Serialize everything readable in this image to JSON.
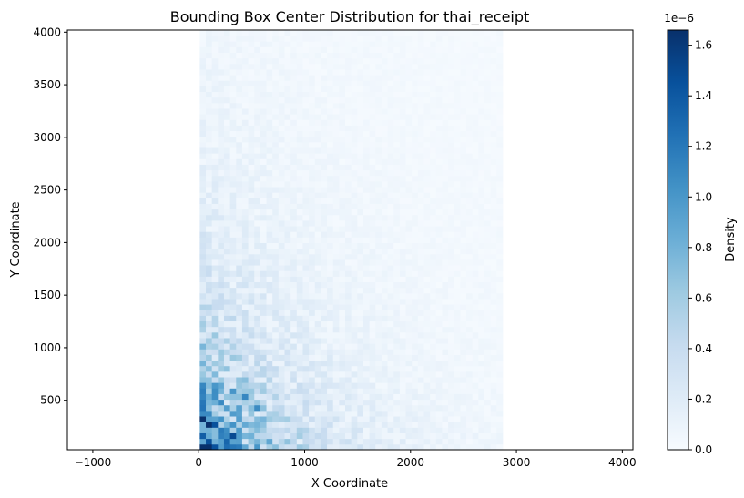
{
  "chart_data": {
    "type": "heatmap",
    "title": "Bounding Box Center Distribution for thai_receipt",
    "xlabel": "X Coordinate",
    "ylabel": "Y Coordinate",
    "xlim": [
      -1240,
      4100
    ],
    "ylim": [
      30,
      4020
    ],
    "xticks": [
      -1000,
      0,
      1000,
      2000,
      3000,
      4000
    ],
    "xtick_labels": [
      "−1000",
      "0",
      "1000",
      "2000",
      "3000",
      "4000"
    ],
    "yticks": [
      500,
      1000,
      1500,
      2000,
      2500,
      3000,
      3500,
      4000
    ],
    "ytick_labels": [
      "500",
      "1000",
      "1500",
      "2000",
      "2500",
      "3000",
      "3500",
      "4000"
    ],
    "grid": false,
    "bins": {
      "x_range": [
        10,
        2870
      ],
      "y_range": [
        30,
        4020
      ],
      "nx": 50,
      "ny": 75
    },
    "colorbar": {
      "label": "Density",
      "offset_text": "1e−6",
      "range": [
        0,
        1.66
      ],
      "ticks": [
        0,
        0.2,
        0.4,
        0.6,
        0.8,
        1.0,
        1.2,
        1.4,
        1.6
      ],
      "tick_labels": [
        "0.0",
        "0.2",
        "0.4",
        "0.6",
        "0.8",
        "1.0",
        "1.2",
        "1.4",
        "1.6"
      ],
      "colormap": "Blues"
    },
    "density_summary": {
      "peak_value": 1.66,
      "peak_location": [
        150,
        250
      ],
      "description_of_shape": "high density near x 0-500, y 0-800; decays toward larger x and y"
    }
  }
}
